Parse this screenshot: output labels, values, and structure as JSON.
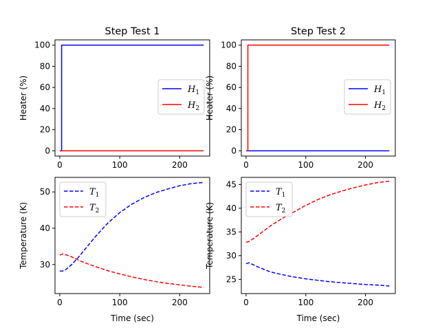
{
  "chart_data": [
    {
      "type": "line",
      "title": "Step Test 1",
      "xlabel": "",
      "ylabel": "Heater (%)",
      "xlim": [
        -8,
        250
      ],
      "ylim": [
        -5,
        105
      ],
      "xticks": [
        0,
        100,
        200
      ],
      "yticks": [
        0,
        20,
        40,
        60,
        80,
        100
      ],
      "legend": {
        "position": "center-right",
        "entries": [
          "H1",
          "H2"
        ]
      },
      "series": [
        {
          "name": "H1",
          "color": "#0000ff",
          "dashed": false,
          "x": [
            0,
            3,
            3.01,
            240
          ],
          "y": [
            0,
            0,
            100,
            100
          ]
        },
        {
          "name": "H2",
          "color": "#ff0000",
          "dashed": false,
          "x": [
            0,
            240
          ],
          "y": [
            0,
            0
          ]
        }
      ]
    },
    {
      "type": "line",
      "title": "Step Test 2",
      "xlabel": "",
      "ylabel": "Heater (%)",
      "xlim": [
        -8,
        250
      ],
      "ylim": [
        -5,
        105
      ],
      "xticks": [
        0,
        100,
        200
      ],
      "yticks": [
        0,
        20,
        40,
        60,
        80,
        100
      ],
      "legend": {
        "position": "center-right",
        "entries": [
          "H1",
          "H2"
        ]
      },
      "series": [
        {
          "name": "H1",
          "color": "#0000ff",
          "dashed": false,
          "x": [
            0,
            240
          ],
          "y": [
            0,
            0
          ]
        },
        {
          "name": "H2",
          "color": "#ff0000",
          "dashed": false,
          "x": [
            0,
            3,
            3.01,
            240
          ],
          "y": [
            0,
            0,
            100,
            100
          ]
        }
      ]
    },
    {
      "type": "line",
      "title": "",
      "xlabel": "Time (sec)",
      "ylabel": "Temperature (K)",
      "xlim": [
        -8,
        250
      ],
      "ylim": [
        22,
        54
      ],
      "xticks": [
        0,
        100,
        200
      ],
      "yticks": [
        30,
        40,
        50
      ],
      "legend": {
        "position": "upper-left",
        "entries": [
          "T1",
          "T2"
        ]
      },
      "series": [
        {
          "name": "T1",
          "color": "#0000ff",
          "dashed": true,
          "x": [
            0,
            5,
            10,
            20,
            30,
            40,
            60,
            80,
            100,
            120,
            140,
            160,
            180,
            200,
            220,
            240
          ],
          "y": [
            28.2,
            28.2,
            28.6,
            30.0,
            31.8,
            33.8,
            37.8,
            41.4,
            44.3,
            46.6,
            48.4,
            49.8,
            50.8,
            51.7,
            52.3,
            52.6
          ]
        },
        {
          "name": "T2",
          "color": "#ff0000",
          "dashed": true,
          "x": [
            0,
            5,
            10,
            20,
            30,
            40,
            60,
            80,
            100,
            120,
            140,
            160,
            180,
            200,
            220,
            240
          ],
          "y": [
            32.6,
            32.9,
            32.7,
            32.1,
            31.3,
            30.6,
            29.4,
            28.3,
            27.4,
            26.6,
            25.9,
            25.3,
            24.8,
            24.4,
            24.0,
            23.7
          ]
        }
      ]
    },
    {
      "type": "line",
      "title": "",
      "xlabel": "Time (sec)",
      "ylabel": "Temperature (K)",
      "xlim": [
        -8,
        250
      ],
      "ylim": [
        22,
        46.5
      ],
      "xticks": [
        0,
        100,
        200
      ],
      "yticks": [
        25,
        30,
        35,
        40,
        45
      ],
      "legend": {
        "position": "upper-left",
        "entries": [
          "T1",
          "T2"
        ]
      },
      "series": [
        {
          "name": "T1",
          "color": "#0000ff",
          "dashed": true,
          "x": [
            0,
            5,
            10,
            20,
            40,
            60,
            80,
            100,
            120,
            140,
            160,
            180,
            200,
            220,
            240
          ],
          "y": [
            28.3,
            28.5,
            28.2,
            27.6,
            26.6,
            26.0,
            25.5,
            25.1,
            24.8,
            24.5,
            24.3,
            24.1,
            23.9,
            23.8,
            23.6
          ]
        },
        {
          "name": "T2",
          "color": "#ff0000",
          "dashed": true,
          "x": [
            0,
            5,
            10,
            20,
            40,
            60,
            80,
            100,
            120,
            140,
            160,
            180,
            200,
            220,
            240
          ],
          "y": [
            32.8,
            33.0,
            33.4,
            34.3,
            36.2,
            37.8,
            39.2,
            40.6,
            41.8,
            42.8,
            43.6,
            44.3,
            44.9,
            45.4,
            45.7
          ]
        }
      ]
    }
  ]
}
